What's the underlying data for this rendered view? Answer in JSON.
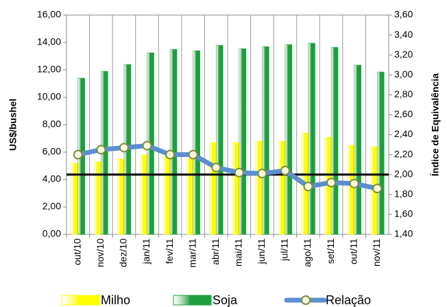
{
  "chart_data": {
    "type": "bar-line",
    "y_label": "US$/bushel",
    "y2_label": "Índice de Equivalência",
    "categories": [
      "out/10",
      "nov/10",
      "dez/10",
      "jan/11",
      "fev/11",
      "mar/11",
      "abr/11",
      "mai/11",
      "jun/11",
      "jul/11",
      "ago/11",
      "set/11",
      "out/11",
      "nov/11"
    ],
    "series": [
      {
        "name": "Milho",
        "type": "bar",
        "color": "#ffff00",
        "values": [
          5.2,
          5.3,
          5.5,
          5.8,
          5.9,
          5.5,
          6.7,
          6.7,
          6.8,
          6.8,
          7.4,
          7.1,
          6.5,
          6.4
        ]
      },
      {
        "name": "Soja",
        "type": "bar",
        "color": "#1e9e3e",
        "values": [
          11.4,
          11.9,
          12.4,
          13.25,
          13.5,
          13.4,
          13.8,
          13.55,
          13.7,
          13.85,
          13.95,
          13.65,
          12.35,
          11.85
        ]
      },
      {
        "name": "Relação",
        "type": "line",
        "axis": "y2",
        "color": "#5b8fd0",
        "values": [
          2.2,
          2.25,
          2.27,
          2.29,
          2.2,
          2.2,
          2.07,
          2.02,
          2.01,
          2.04,
          1.88,
          1.92,
          1.91,
          1.86
        ]
      }
    ],
    "reference_line": {
      "value": 2.0,
      "axis": "y2",
      "color": "#000000"
    },
    "ylim": [
      0,
      16
    ],
    "yticks": [
      {
        "value": 0,
        "label": "0,00"
      },
      {
        "value": 2,
        "label": "2,00"
      },
      {
        "value": 4,
        "label": "4,00"
      },
      {
        "value": 6,
        "label": "6,00"
      },
      {
        "value": 8,
        "label": "8,00"
      },
      {
        "value": 10,
        "label": "10,00"
      },
      {
        "value": 12,
        "label": "12,00"
      },
      {
        "value": 14,
        "label": "14,00"
      },
      {
        "value": 16,
        "label": "16,00"
      }
    ],
    "y2lim": [
      1.4,
      3.6
    ],
    "y2ticks": [
      {
        "value": 1.4,
        "label": "1,40"
      },
      {
        "value": 1.6,
        "label": "1,60"
      },
      {
        "value": 1.8,
        "label": "1,80"
      },
      {
        "value": 2.0,
        "label": "2,00"
      },
      {
        "value": 2.2,
        "label": "2,20"
      },
      {
        "value": 2.4,
        "label": "2,40"
      },
      {
        "value": 2.6,
        "label": "2,60"
      },
      {
        "value": 2.8,
        "label": "2,80"
      },
      {
        "value": 3.0,
        "label": "3,00"
      },
      {
        "value": 3.2,
        "label": "3,20"
      },
      {
        "value": 3.4,
        "label": "3,40"
      },
      {
        "value": 3.6,
        "label": "3,60"
      }
    ],
    "vertical_grid": true,
    "legend": "bottom"
  }
}
